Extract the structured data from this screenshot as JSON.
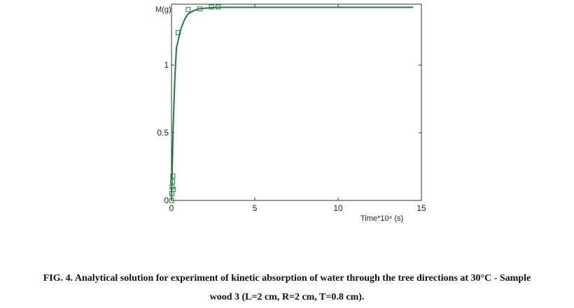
{
  "chart_data": {
    "type": "line",
    "title": "",
    "xlabel": "Time*10⁴ (s)",
    "ylabel": "M(g)",
    "xlim": [
      0,
      15
    ],
    "ylim": [
      0,
      1.45
    ],
    "x_ticks": [
      "0",
      "5",
      "10",
      "15"
    ],
    "y_ticks": [
      "0",
      "0.5",
      "1"
    ],
    "grid": false,
    "series": [
      {
        "style": "line",
        "color": "#1f7a3a",
        "x": [
          0,
          0.1,
          0.2,
          0.3,
          0.4,
          0.5,
          0.6,
          0.8,
          1.0,
          1.3,
          1.6,
          2.0,
          2.5,
          3.0,
          3.5,
          4,
          6,
          8,
          10,
          12,
          14.5
        ],
        "y": [
          0,
          0.55,
          0.9,
          1.13,
          1.18,
          1.24,
          1.28,
          1.34,
          1.38,
          1.4,
          1.415,
          1.42,
          1.425,
          1.427,
          1.427,
          1.427,
          1.427,
          1.427,
          1.427,
          1.427,
          1.427
        ]
      },
      {
        "style": "markers",
        "marker": "square",
        "color": "#1f7a3a",
        "x": [
          0,
          0.02,
          0.04,
          0.06,
          0.08,
          0.1,
          0.4,
          1.0,
          1.7,
          2.4,
          2.8
        ],
        "y": [
          0,
          0.05,
          0.1,
          0.14,
          0.18,
          0.08,
          1.24,
          1.41,
          1.415,
          1.43,
          1.43
        ]
      }
    ]
  },
  "caption": {
    "line1": "FIG. 4. Analytical solution for experiment of kinetic absorption of water through the tree directions at 30°C - Sample",
    "line2": "wood 3 (L=2 cm, R=2 cm, T=0.8 cm)."
  }
}
